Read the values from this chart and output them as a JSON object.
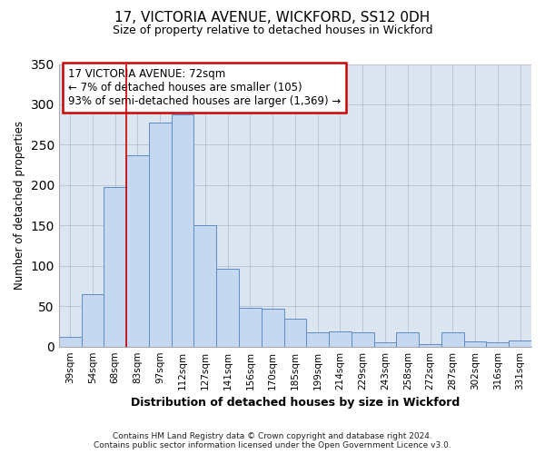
{
  "title": "17, VICTORIA AVENUE, WICKFORD, SS12 0DH",
  "subtitle": "Size of property relative to detached houses in Wickford",
  "xlabel": "Distribution of detached houses by size in Wickford",
  "ylabel": "Number of detached properties",
  "bin_labels": [
    "39sqm",
    "54sqm",
    "68sqm",
    "83sqm",
    "97sqm",
    "112sqm",
    "127sqm",
    "141sqm",
    "156sqm",
    "170sqm",
    "185sqm",
    "199sqm",
    "214sqm",
    "229sqm",
    "243sqm",
    "258sqm",
    "272sqm",
    "287sqm",
    "302sqm",
    "316sqm",
    "331sqm"
  ],
  "bar_heights": [
    12,
    65,
    198,
    237,
    277,
    288,
    150,
    96,
    48,
    47,
    35,
    18,
    19,
    18,
    5,
    18,
    3,
    18,
    6,
    5,
    7
  ],
  "bar_color": "#c5d8ef",
  "bar_edge_color": "#5b8cc8",
  "plot_bg_color": "#dce6f1",
  "fig_bg_color": "#ffffff",
  "red_line_index": 2.5,
  "annotation_title": "17 VICTORIA AVENUE: 72sqm",
  "annotation_line1": "← 7% of detached houses are smaller (105)",
  "annotation_line2": "93% of semi-detached houses are larger (1,369) →",
  "annotation_box_color": "#ffffff",
  "annotation_box_edge_color": "#cc0000",
  "ylim": [
    0,
    350
  ],
  "yticks": [
    0,
    50,
    100,
    150,
    200,
    250,
    300,
    350
  ],
  "footer_line1": "Contains HM Land Registry data © Crown copyright and database right 2024.",
  "footer_line2": "Contains public sector information licensed under the Open Government Licence v3.0."
}
